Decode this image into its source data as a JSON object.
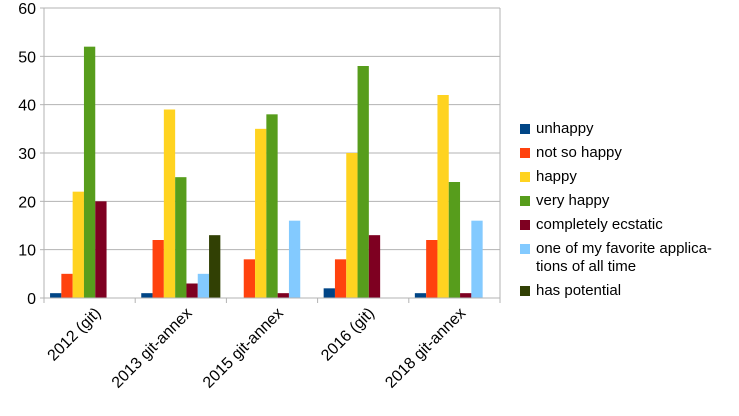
{
  "chart_data": {
    "type": "bar",
    "categories": [
      "2012 (git)",
      "2013 git-annex",
      "2015 git-annex",
      "2016 (git)",
      "2018 git-annex"
    ],
    "ylim": [
      0,
      60
    ],
    "yticks": [
      "0",
      "10",
      "20",
      "30",
      "40",
      "50",
      "60"
    ],
    "grid": true,
    "legend_position": "right",
    "series": [
      {
        "name": "unhappy",
        "color": "#004586",
        "values": [
          1,
          1,
          0,
          2,
          1
        ]
      },
      {
        "name": "not so happy",
        "color": "#ff420e",
        "values": [
          5,
          12,
          8,
          8,
          12
        ]
      },
      {
        "name": "happy",
        "color": "#ffd320",
        "values": [
          22,
          39,
          35,
          30,
          42
        ]
      },
      {
        "name": "very happy",
        "color": "#579d1c",
        "values": [
          52,
          25,
          38,
          48,
          24
        ]
      },
      {
        "name": "completely ecstatic",
        "color": "#7e0021",
        "values": [
          20,
          3,
          1,
          13,
          1
        ]
      },
      {
        "name": "one of my favorite applica-\ntions of all time",
        "color": "#83caff",
        "values": [
          0,
          5,
          16,
          0,
          16
        ]
      },
      {
        "name": "has potential",
        "color": "#314004",
        "values": [
          0,
          13,
          0,
          0,
          0
        ]
      }
    ]
  }
}
